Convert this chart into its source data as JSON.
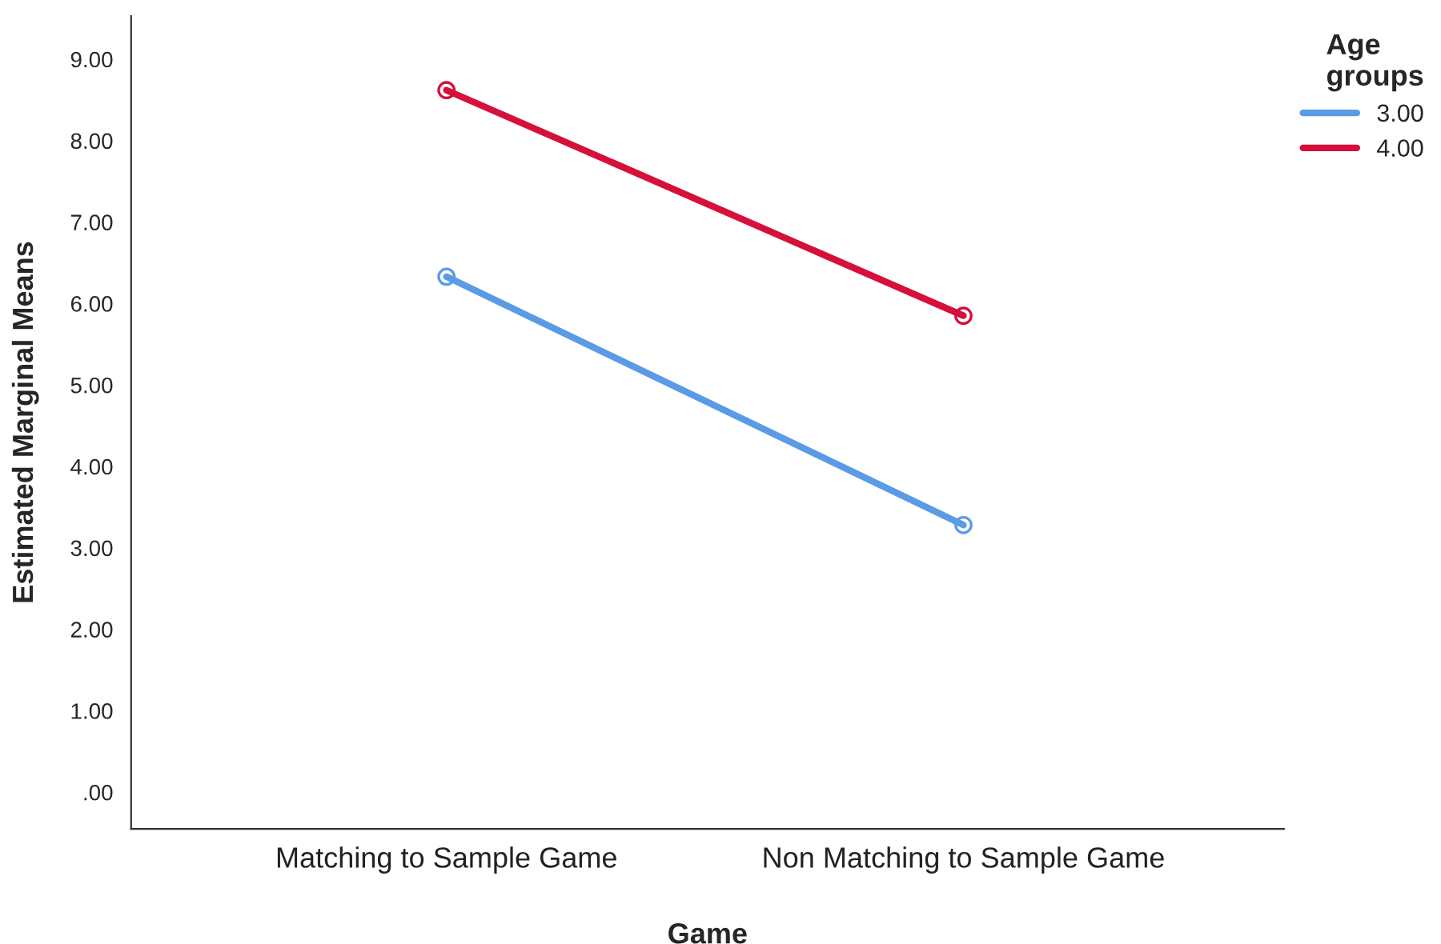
{
  "chart_data": {
    "type": "line",
    "xlabel": "Game",
    "ylabel": "Estimated Marginal Means",
    "legend_title": "Age\ngroups",
    "categories": [
      "Matching to Sample Game",
      "Non Matching to Sample Game"
    ],
    "series": [
      {
        "name": "3.00",
        "color": "#5b9be6",
        "values": [
          6.33,
          3.28
        ]
      },
      {
        "name": "4.00",
        "color": "#d5103b",
        "values": [
          8.62,
          5.85
        ]
      }
    ],
    "ylim": [
      -0.45,
      9.53
    ],
    "yticks": [
      {
        "value": 0,
        "label": ".00"
      },
      {
        "value": 1,
        "label": "1.00"
      },
      {
        "value": 2,
        "label": "2.00"
      },
      {
        "value": 3,
        "label": "3.00"
      },
      {
        "value": 4,
        "label": "4.00"
      },
      {
        "value": 5,
        "label": "5.00"
      },
      {
        "value": 6,
        "label": "6.00"
      },
      {
        "value": 7,
        "label": "7.00"
      },
      {
        "value": 8,
        "label": "8.00"
      },
      {
        "value": 9,
        "label": "9.00"
      }
    ],
    "grid": false,
    "legend": "top right",
    "marker": "circle",
    "line_style": "solid"
  }
}
